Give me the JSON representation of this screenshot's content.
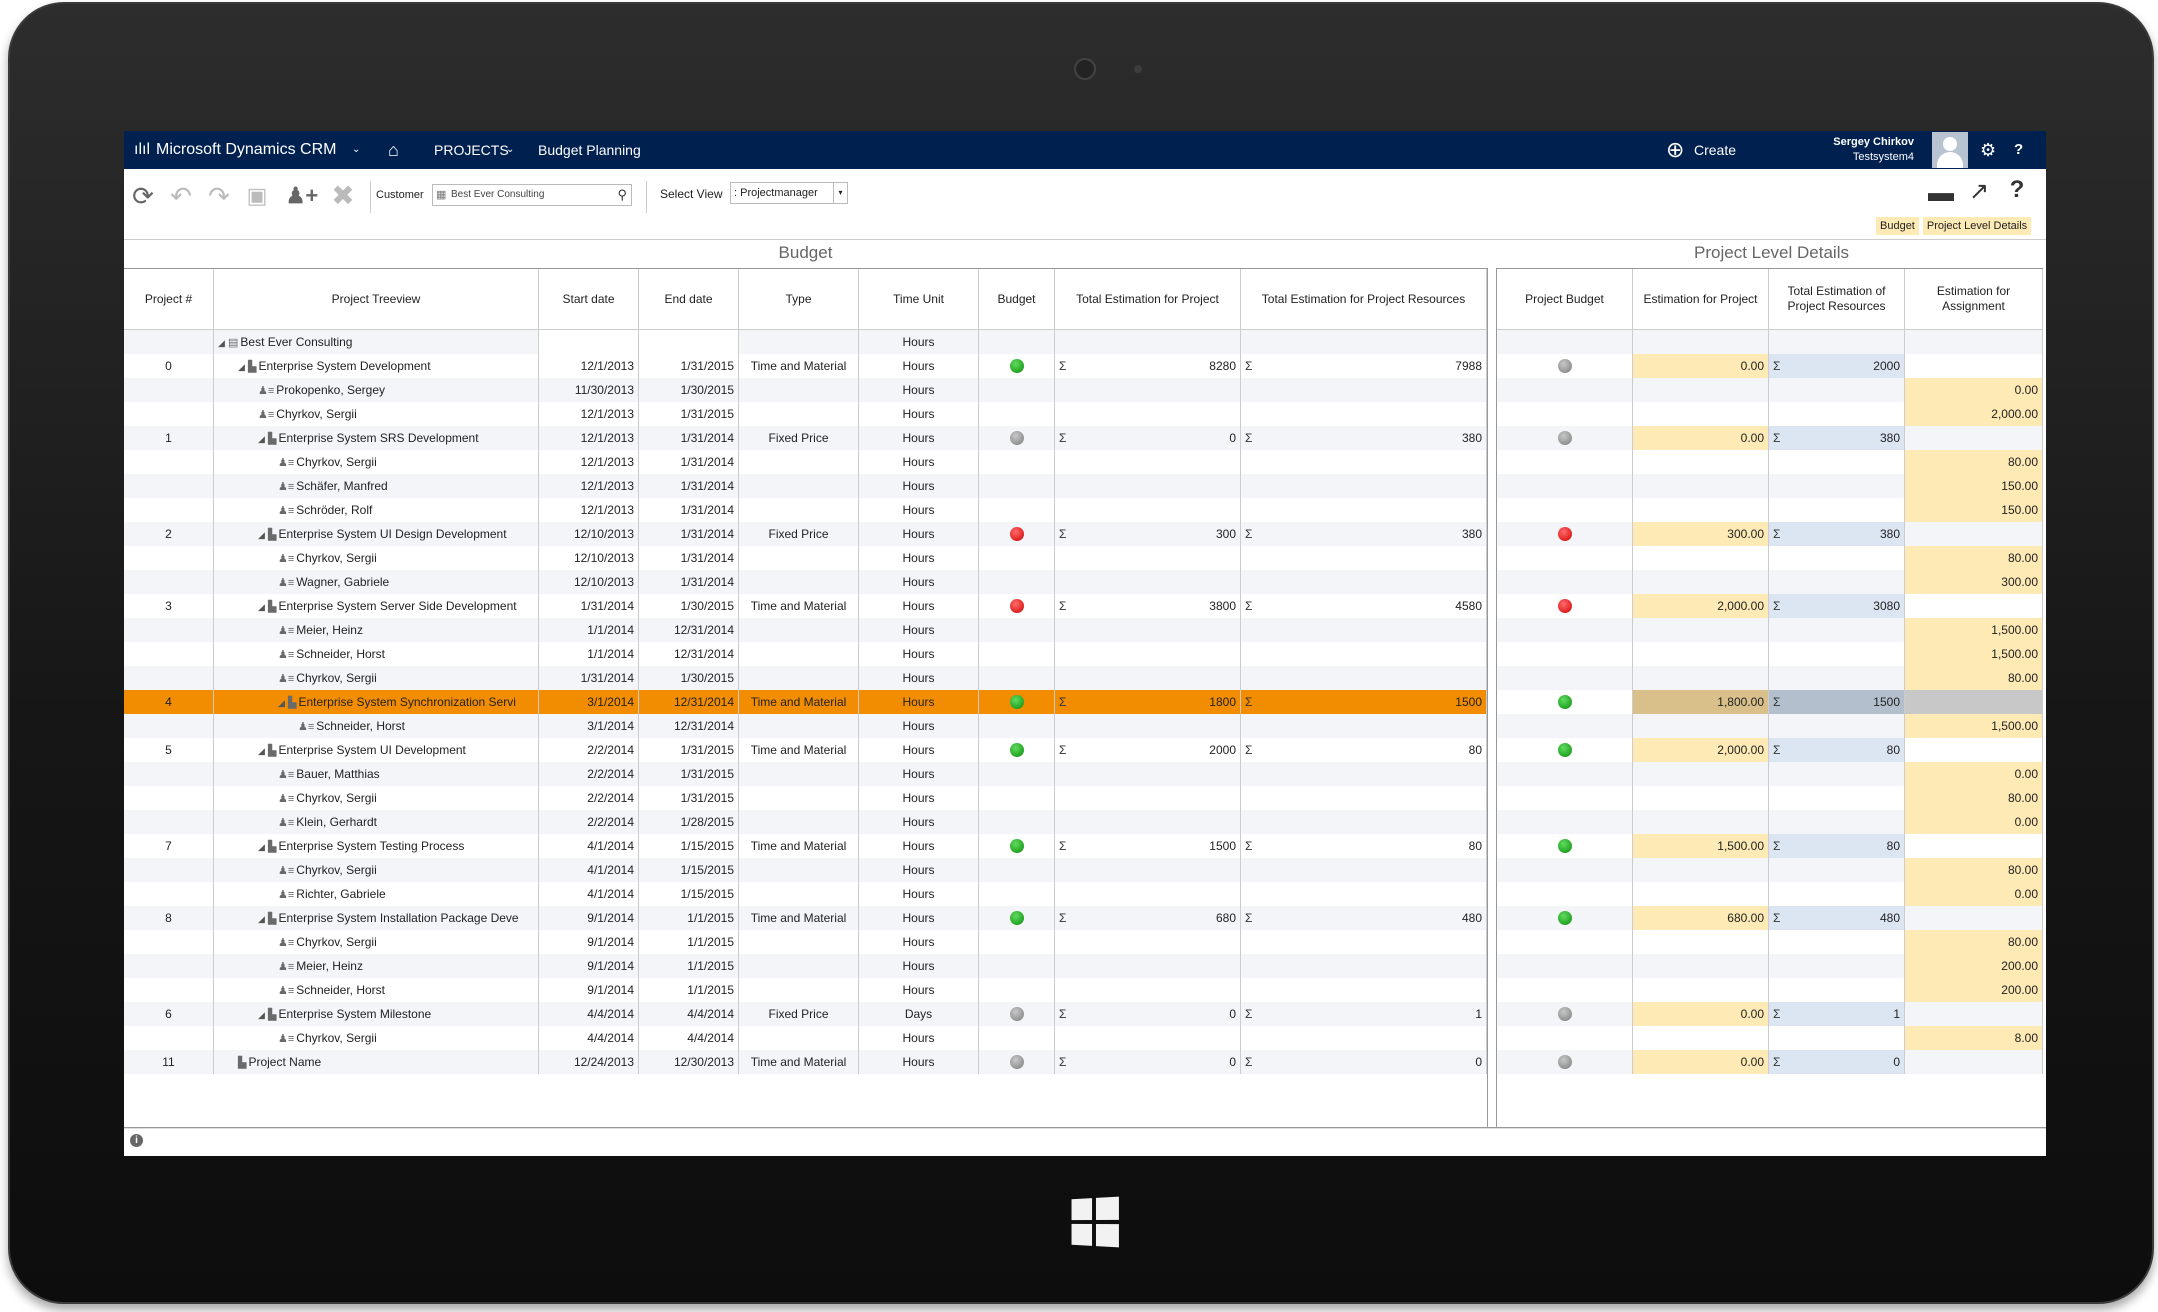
{
  "nav": {
    "app_title": "Microsoft Dynamics CRM",
    "projects": "PROJECTS",
    "page": "Budget Planning",
    "create": "Create",
    "user_name": "Sergey Chirkov",
    "user_org": "Testsystem4",
    "help": "?"
  },
  "toolbar": {
    "customer_label": "Customer",
    "customer_value": "Best Ever Consulting",
    "view_label": "Select View",
    "view_value": ": Projectmanager",
    "links": [
      "Budget",
      "Project Level Details"
    ]
  },
  "sections": {
    "budget": "Budget",
    "details": "Project Level Details"
  },
  "columns": {
    "left": [
      "Project #",
      "Project Treeview",
      "Start date",
      "End date",
      "Type",
      "Time Unit",
      "Budget",
      "Total Estimation for Project",
      "Total Estimation for Project Resources"
    ],
    "right": [
      "Project Budget",
      "Estimation for Project",
      "Total Estimation of Project Resources",
      "Estimation for Assignment"
    ]
  },
  "colors": {
    "nav": "#002050",
    "selected": "#f28c00",
    "estimate_cell": "#fdeab4",
    "resource_cell": "#dce6f2"
  },
  "rows": [
    {
      "num": "",
      "name": "Best Ever Consulting",
      "level": 0,
      "kind": "root",
      "start": "",
      "end": "",
      "type": "",
      "unit": "Hours",
      "budget": "",
      "tp": "",
      "tr": "",
      "pbudget": "",
      "est": "",
      "rsum": "",
      "assign": ""
    },
    {
      "num": "0",
      "name": "Enterprise System Development",
      "level": 1,
      "kind": "project",
      "start": "12/1/2013",
      "end": "1/31/2015",
      "type": "Time and Material",
      "unit": "Hours",
      "budget": "green",
      "tp": "8280",
      "tr": "7988",
      "pbudget": "gray",
      "est": "0.00",
      "rsum": "2000",
      "assign": ""
    },
    {
      "num": "",
      "name": "Prokopenko, Sergey",
      "level": 2,
      "kind": "res",
      "start": "11/30/2013",
      "end": "1/30/2015",
      "type": "",
      "unit": "Hours",
      "budget": "",
      "tp": "",
      "tr": "",
      "pbudget": "",
      "est": "",
      "rsum": "",
      "assign": "0.00"
    },
    {
      "num": "",
      "name": "Chyrkov, Sergii",
      "level": 2,
      "kind": "res",
      "start": "12/1/2013",
      "end": "1/31/2015",
      "type": "",
      "unit": "Hours",
      "budget": "",
      "tp": "",
      "tr": "",
      "pbudget": "",
      "est": "",
      "rsum": "",
      "assign": "2,000.00"
    },
    {
      "num": "1",
      "name": "Enterprise System SRS Development",
      "level": 2,
      "kind": "project",
      "start": "12/1/2013",
      "end": "1/31/2014",
      "type": "Fixed Price",
      "unit": "Hours",
      "budget": "gray",
      "tp": "0",
      "tr": "380",
      "pbudget": "gray",
      "est": "0.00",
      "rsum": "380",
      "assign": ""
    },
    {
      "num": "",
      "name": "Chyrkov, Sergii",
      "level": 3,
      "kind": "res",
      "start": "12/1/2013",
      "end": "1/31/2014",
      "type": "",
      "unit": "Hours",
      "budget": "",
      "tp": "",
      "tr": "",
      "pbudget": "",
      "est": "",
      "rsum": "",
      "assign": "80.00"
    },
    {
      "num": "",
      "name": "Schäfer, Manfred",
      "level": 3,
      "kind": "res",
      "start": "12/1/2013",
      "end": "1/31/2014",
      "type": "",
      "unit": "Hours",
      "budget": "",
      "tp": "",
      "tr": "",
      "pbudget": "",
      "est": "",
      "rsum": "",
      "assign": "150.00"
    },
    {
      "num": "",
      "name": "Schröder, Rolf",
      "level": 3,
      "kind": "res",
      "start": "12/1/2013",
      "end": "1/31/2014",
      "type": "",
      "unit": "Hours",
      "budget": "",
      "tp": "",
      "tr": "",
      "pbudget": "",
      "est": "",
      "rsum": "",
      "assign": "150.00"
    },
    {
      "num": "2",
      "name": "Enterprise System UI Design Development",
      "level": 2,
      "kind": "project",
      "start": "12/10/2013",
      "end": "1/31/2014",
      "type": "Fixed Price",
      "unit": "Hours",
      "budget": "red",
      "tp": "300",
      "tr": "380",
      "pbudget": "red",
      "est": "300.00",
      "rsum": "380",
      "assign": ""
    },
    {
      "num": "",
      "name": "Chyrkov, Sergii",
      "level": 3,
      "kind": "res",
      "start": "12/10/2013",
      "end": "1/31/2014",
      "type": "",
      "unit": "Hours",
      "budget": "",
      "tp": "",
      "tr": "",
      "pbudget": "",
      "est": "",
      "rsum": "",
      "assign": "80.00"
    },
    {
      "num": "",
      "name": "Wagner, Gabriele",
      "level": 3,
      "kind": "res",
      "start": "12/10/2013",
      "end": "1/31/2014",
      "type": "",
      "unit": "Hours",
      "budget": "",
      "tp": "",
      "tr": "",
      "pbudget": "",
      "est": "",
      "rsum": "",
      "assign": "300.00"
    },
    {
      "num": "3",
      "name": "Enterprise System Server Side Development",
      "level": 2,
      "kind": "project",
      "start": "1/31/2014",
      "end": "1/30/2015",
      "type": "Time and Material",
      "unit": "Hours",
      "budget": "red",
      "tp": "3800",
      "tr": "4580",
      "pbudget": "red",
      "est": "2,000.00",
      "rsum": "3080",
      "assign": ""
    },
    {
      "num": "",
      "name": "Meier, Heinz",
      "level": 3,
      "kind": "res",
      "start": "1/1/2014",
      "end": "12/31/2014",
      "type": "",
      "unit": "Hours",
      "budget": "",
      "tp": "",
      "tr": "",
      "pbudget": "",
      "est": "",
      "rsum": "",
      "assign": "1,500.00"
    },
    {
      "num": "",
      "name": "Schneider, Horst",
      "level": 3,
      "kind": "res",
      "start": "1/1/2014",
      "end": "12/31/2014",
      "type": "",
      "unit": "Hours",
      "budget": "",
      "tp": "",
      "tr": "",
      "pbudget": "",
      "est": "",
      "rsum": "",
      "assign": "1,500.00"
    },
    {
      "num": "",
      "name": "Chyrkov, Sergii",
      "level": 3,
      "kind": "res",
      "start": "1/31/2014",
      "end": "1/30/2015",
      "type": "",
      "unit": "Hours",
      "budget": "",
      "tp": "",
      "tr": "",
      "pbudget": "",
      "est": "",
      "rsum": "",
      "assign": "80.00"
    },
    {
      "num": "4",
      "name": "Enterprise System Synchronization Servi",
      "level": 3,
      "kind": "project",
      "start": "3/1/2014",
      "end": "12/31/2014",
      "type": "Time and Material",
      "unit": "Hours",
      "budget": "green",
      "tp": "1800",
      "tr": "1500",
      "pbudget": "green",
      "est": "1,800.00",
      "rsum": "1500",
      "assign": "",
      "selected": true
    },
    {
      "num": "",
      "name": "Schneider, Horst",
      "level": 4,
      "kind": "res",
      "start": "3/1/2014",
      "end": "12/31/2014",
      "type": "",
      "unit": "Hours",
      "budget": "",
      "tp": "",
      "tr": "",
      "pbudget": "",
      "est": "",
      "rsum": "",
      "assign": "1,500.00"
    },
    {
      "num": "5",
      "name": "Enterprise System UI Development",
      "level": 2,
      "kind": "project",
      "start": "2/2/2014",
      "end": "1/31/2015",
      "type": "Time and Material",
      "unit": "Hours",
      "budget": "green",
      "tp": "2000",
      "tr": "80",
      "pbudget": "green",
      "est": "2,000.00",
      "rsum": "80",
      "assign": ""
    },
    {
      "num": "",
      "name": "Bauer, Matthias",
      "level": 3,
      "kind": "res",
      "start": "2/2/2014",
      "end": "1/31/2015",
      "type": "",
      "unit": "Hours",
      "budget": "",
      "tp": "",
      "tr": "",
      "pbudget": "",
      "est": "",
      "rsum": "",
      "assign": "0.00"
    },
    {
      "num": "",
      "name": "Chyrkov, Sergii",
      "level": 3,
      "kind": "res",
      "start": "2/2/2014",
      "end": "1/31/2015",
      "type": "",
      "unit": "Hours",
      "budget": "",
      "tp": "",
      "tr": "",
      "pbudget": "",
      "est": "",
      "rsum": "",
      "assign": "80.00"
    },
    {
      "num": "",
      "name": "Klein, Gerhardt",
      "level": 3,
      "kind": "res",
      "start": "2/2/2014",
      "end": "1/28/2015",
      "type": "",
      "unit": "Hours",
      "budget": "",
      "tp": "",
      "tr": "",
      "pbudget": "",
      "est": "",
      "rsum": "",
      "assign": "0.00"
    },
    {
      "num": "7",
      "name": "Enterprise System Testing Process",
      "level": 2,
      "kind": "project",
      "start": "4/1/2014",
      "end": "1/15/2015",
      "type": "Time and Material",
      "unit": "Hours",
      "budget": "green",
      "tp": "1500",
      "tr": "80",
      "pbudget": "green",
      "est": "1,500.00",
      "rsum": "80",
      "assign": ""
    },
    {
      "num": "",
      "name": "Chyrkov, Sergii",
      "level": 3,
      "kind": "res",
      "start": "4/1/2014",
      "end": "1/15/2015",
      "type": "",
      "unit": "Hours",
      "budget": "",
      "tp": "",
      "tr": "",
      "pbudget": "",
      "est": "",
      "rsum": "",
      "assign": "80.00"
    },
    {
      "num": "",
      "name": "Richter, Gabriele",
      "level": 3,
      "kind": "res",
      "start": "4/1/2014",
      "end": "1/15/2015",
      "type": "",
      "unit": "Hours",
      "budget": "",
      "tp": "",
      "tr": "",
      "pbudget": "",
      "est": "",
      "rsum": "",
      "assign": "0.00"
    },
    {
      "num": "8",
      "name": "Enterprise System Installation Package Deve",
      "level": 2,
      "kind": "project",
      "start": "9/1/2014",
      "end": "1/1/2015",
      "type": "Time and Material",
      "unit": "Hours",
      "budget": "green",
      "tp": "680",
      "tr": "480",
      "pbudget": "green",
      "est": "680.00",
      "rsum": "480",
      "assign": ""
    },
    {
      "num": "",
      "name": "Chyrkov, Sergii",
      "level": 3,
      "kind": "res",
      "start": "9/1/2014",
      "end": "1/1/2015",
      "type": "",
      "unit": "Hours",
      "budget": "",
      "tp": "",
      "tr": "",
      "pbudget": "",
      "est": "",
      "rsum": "",
      "assign": "80.00"
    },
    {
      "num": "",
      "name": "Meier, Heinz",
      "level": 3,
      "kind": "res",
      "start": "9/1/2014",
      "end": "1/1/2015",
      "type": "",
      "unit": "Hours",
      "budget": "",
      "tp": "",
      "tr": "",
      "pbudget": "",
      "est": "",
      "rsum": "",
      "assign": "200.00"
    },
    {
      "num": "",
      "name": "Schneider, Horst",
      "level": 3,
      "kind": "res",
      "start": "9/1/2014",
      "end": "1/1/2015",
      "type": "",
      "unit": "Hours",
      "budget": "",
      "tp": "",
      "tr": "",
      "pbudget": "",
      "est": "",
      "rsum": "",
      "assign": "200.00"
    },
    {
      "num": "6",
      "name": "Enterprise System Milestone",
      "level": 2,
      "kind": "project",
      "start": "4/4/2014",
      "end": "4/4/2014",
      "type": "Fixed Price",
      "unit": "Days",
      "budget": "gray",
      "tp": "0",
      "tr": "1",
      "pbudget": "gray",
      "est": "0.00",
      "rsum": "1",
      "assign": ""
    },
    {
      "num": "",
      "name": "Chyrkov, Sergii",
      "level": 3,
      "kind": "res",
      "start": "4/4/2014",
      "end": "4/4/2014",
      "type": "",
      "unit": "Hours",
      "budget": "",
      "tp": "",
      "tr": "",
      "pbudget": "",
      "est": "",
      "rsum": "",
      "assign": "8.00"
    },
    {
      "num": "11",
      "name": "Project Name",
      "level": 1,
      "kind": "leaf",
      "start": "12/24/2013",
      "end": "12/30/2013",
      "type": "Time and Material",
      "unit": "Hours",
      "budget": "gray",
      "tp": "0",
      "tr": "0",
      "pbudget": "gray",
      "est": "0.00",
      "rsum": "0",
      "assign": ""
    }
  ]
}
